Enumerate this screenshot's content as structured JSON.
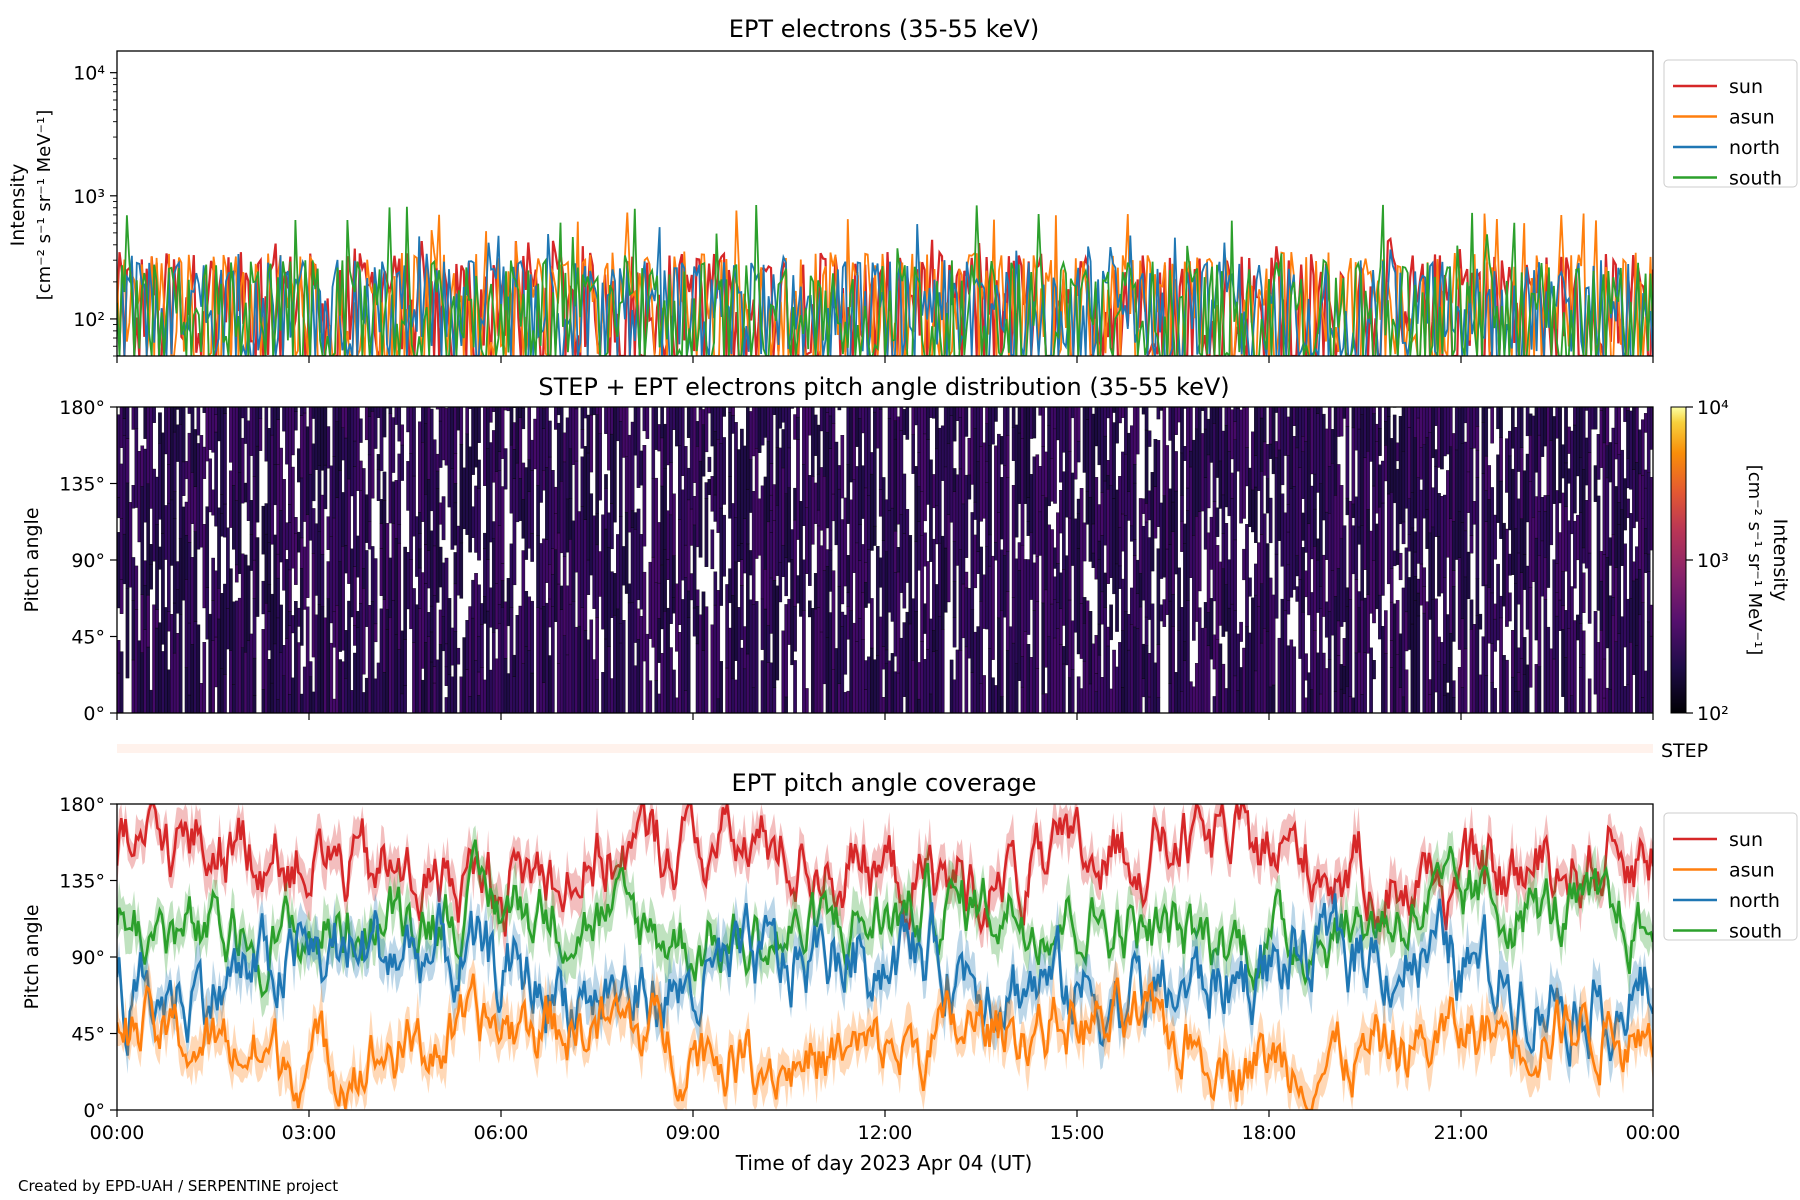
{
  "colors": {
    "sun": "#d62728",
    "asun": "#ff7f0e",
    "north": "#1f77b4",
    "south": "#2ca02c"
  },
  "xaxis": {
    "label": "Time of day 2023 Apr 04 (UT)",
    "ticks": [
      "00:00",
      "03:00",
      "06:00",
      "09:00",
      "12:00",
      "15:00",
      "18:00",
      "21:00",
      "00:00"
    ]
  },
  "credit": "Created by EPD-UAH / SERPENTINE project",
  "legend": [
    "sun",
    "asun",
    "north",
    "south"
  ],
  "step_label": "STEP",
  "chart_data": [
    {
      "type": "line",
      "title": "EPT electrons (35-55 keV)",
      "ylabel_line1": "Intensity",
      "ylabel_line2": "[cm⁻² s⁻¹ sr⁻¹ MeV⁻¹]",
      "yscale": "log",
      "ylim": [
        50,
        15000
      ],
      "yticks": [
        "10²",
        "10³",
        "10⁴"
      ],
      "xlim_hours": [
        0,
        24
      ],
      "legend": "top-right outside",
      "series": [
        {
          "name": "sun",
          "typical_range": [
            50,
            350
          ],
          "peak": 450
        },
        {
          "name": "asun",
          "typical_range": [
            50,
            350
          ],
          "peak": 820
        },
        {
          "name": "north",
          "typical_range": [
            50,
            300
          ],
          "peak": 640
        },
        {
          "name": "south",
          "typical_range": [
            50,
            300
          ],
          "peak": 880
        }
      ]
    },
    {
      "type": "heatmap",
      "title": "STEP + EPT electrons pitch angle distribution (35-55 keV)",
      "ylabel": "Pitch angle",
      "ylim": [
        0,
        180
      ],
      "yticks": [
        "0°",
        "45°",
        "90°",
        "135°",
        "180°"
      ],
      "colorbar": {
        "label_line1": "Intensity",
        "label_line2": "[cm⁻² s⁻¹ sr⁻¹ MeV⁻¹]",
        "scale": "log",
        "range": [
          100,
          10000
        ],
        "ticks": [
          "10²",
          "10³",
          "10⁴"
        ]
      }
    },
    {
      "type": "line",
      "title": "EPT pitch angle coverage",
      "ylabel": "Pitch angle",
      "ylim": [
        0,
        180
      ],
      "yticks": [
        "0°",
        "45°",
        "90°",
        "135°",
        "180°"
      ],
      "legend": "top-right outside",
      "series": [
        {
          "name": "sun",
          "mean": 145,
          "spread": 20
        },
        {
          "name": "asun",
          "mean": 40,
          "spread": 18
        },
        {
          "name": "north",
          "mean": 80,
          "spread": 22
        },
        {
          "name": "south",
          "mean": 110,
          "spread": 18
        }
      ]
    }
  ]
}
